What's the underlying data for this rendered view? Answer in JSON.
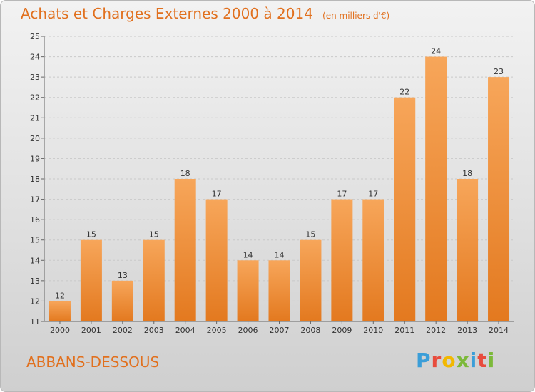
{
  "header": {
    "title": "Achats et Charges Externes 2000 à 2014",
    "unit": "(en milliers d'€)"
  },
  "footer": {
    "commune": "ABBANS-DESSOUS",
    "logo_text": "Proxiti"
  },
  "colors": {
    "accent": "#e1701e",
    "bar_light": "#f7a65a",
    "bar_dark": "#e3791f"
  },
  "chart_data": {
    "type": "bar",
    "title": "Achats et Charges Externes 2000 à 2014",
    "subtitle": "(en milliers d'€)",
    "categories": [
      "2000",
      "2001",
      "2002",
      "2003",
      "2004",
      "2005",
      "2006",
      "2007",
      "2008",
      "2009",
      "2010",
      "2011",
      "2012",
      "2013",
      "2014"
    ],
    "values": [
      12,
      15,
      13,
      15,
      18,
      17,
      14,
      14,
      15,
      17,
      17,
      22,
      24,
      18,
      23
    ],
    "yticks": [
      11,
      12,
      13,
      14,
      15,
      16,
      17,
      18,
      19,
      20,
      21,
      22,
      23,
      24,
      25
    ],
    "ylim": [
      11,
      25
    ],
    "grid": true,
    "data_labels": true
  }
}
